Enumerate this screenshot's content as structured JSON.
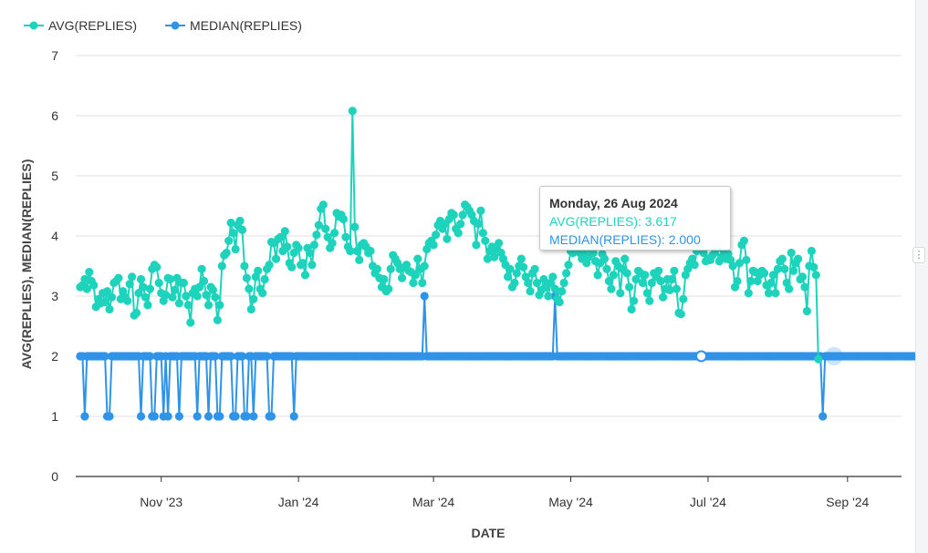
{
  "colors": {
    "avg": "#1ed3bb",
    "median": "#2f93e8",
    "grid": "#e6e6e6",
    "axis": "#333333",
    "text": "#333333"
  },
  "chart_data": {
    "type": "line",
    "title": "",
    "xlabel": "DATE",
    "ylabel": "AVG(REPLIES), MEDIAN(REPLIES)",
    "x_range": [
      "2023-09-24",
      "2024-09-25"
    ],
    "ylim": [
      0,
      7
    ],
    "y_ticks": [
      "0",
      "1",
      "2",
      "3",
      "4",
      "5",
      "6",
      "7"
    ],
    "x_ticks": [
      {
        "label": "Nov '23",
        "date": "2023-11-01"
      },
      {
        "label": "Jan '24",
        "date": "2024-01-01"
      },
      {
        "label": "Mar '24",
        "date": "2024-03-01"
      },
      {
        "label": "May '24",
        "date": "2024-05-01"
      },
      {
        "label": "Jul '24",
        "date": "2024-07-01"
      },
      {
        "label": "Sep '24",
        "date": "2024-09-01"
      }
    ],
    "grid": true,
    "legend_position": "top-left",
    "x_start_date": "2023-09-26",
    "series": [
      {
        "name": "AVG(REPLIES)",
        "values": [
          3.15,
          3.18,
          3.28,
          3.12,
          3.4,
          3.25,
          3.18,
          2.82,
          2.95,
          2.88,
          3.05,
          2.9,
          3.08,
          2.78,
          2.98,
          3.22,
          3.25,
          3.3,
          2.95,
          3.08,
          2.98,
          2.92,
          3.2,
          3.32,
          2.68,
          2.72,
          3.05,
          3.28,
          3.15,
          2.98,
          2.85,
          3.12,
          3.45,
          3.52,
          3.48,
          3.22,
          3.05,
          2.92,
          3.02,
          3.3,
          3.28,
          2.98,
          3.1,
          3.3,
          2.88,
          3.22,
          3.22,
          3.0,
          2.85,
          2.56,
          3.05,
          3.12,
          3.0,
          3.15,
          3.45,
          3.25,
          3.02,
          2.85,
          3.15,
          3.1,
          2.98,
          2.6,
          2.85,
          3.5,
          3.68,
          3.72,
          3.92,
          4.22,
          4.05,
          3.78,
          4.18,
          4.25,
          4.1,
          3.5,
          3.3,
          3.12,
          2.78,
          2.95,
          3.32,
          3.42,
          3.12,
          3.05,
          3.28,
          3.45,
          3.52,
          3.9,
          3.88,
          3.62,
          3.95,
          3.98,
          3.75,
          4.08,
          3.82,
          3.55,
          3.48,
          3.72,
          3.85,
          3.8,
          3.52,
          3.55,
          3.35,
          3.8,
          3.72,
          3.52,
          3.85,
          4.02,
          4.18,
          4.45,
          4.52,
          4.12,
          3.98,
          3.8,
          3.88,
          4.05,
          4.38,
          4.32,
          4.35,
          4.28,
          3.98,
          3.82,
          3.75,
          6.08,
          4.15,
          3.75,
          3.6,
          3.85,
          3.88,
          3.82,
          3.72,
          3.75,
          3.5,
          3.38,
          3.45,
          3.3,
          3.15,
          3.28,
          3.08,
          3.12,
          3.45,
          3.68,
          3.62,
          3.55,
          3.45,
          3.3,
          3.48,
          3.52,
          3.42,
          3.4,
          3.22,
          3.35,
          3.62,
          3.45,
          3.22,
          3.5,
          3.78,
          3.88,
          3.92,
          3.85,
          4.02,
          4.18,
          4.25,
          4.12,
          4.2,
          3.95,
          4.28,
          4.38,
          4.35,
          4.12,
          4.05,
          4.2,
          4.35,
          4.52,
          4.48,
          4.42,
          4.35,
          4.25,
          3.85,
          4.2,
          4.42,
          4.05,
          3.92,
          3.62,
          3.75,
          3.82,
          3.65,
          3.78,
          3.88,
          3.72,
          3.62,
          3.52,
          3.32,
          3.45,
          3.15,
          3.22,
          3.38,
          3.5,
          3.62,
          3.48,
          3.32,
          3.22,
          3.08,
          3.38,
          3.45,
          3.22,
          3.02,
          3.1,
          3.28,
          3.15,
          3.0,
          3.22,
          3.32,
          3.12,
          2.95,
          2.9,
          3.08,
          3.22,
          3.38,
          3.52,
          3.75,
          3.72,
          3.85,
          3.95,
          3.72,
          3.62,
          3.7,
          3.55,
          3.65,
          3.78,
          3.72,
          3.58,
          3.35,
          3.55,
          3.7,
          3.62,
          3.45,
          3.25,
          3.12,
          3.35,
          3.58,
          3.5,
          3.05,
          3.45,
          3.62,
          3.38,
          3.15,
          2.78,
          2.92,
          3.28,
          3.42,
          3.38,
          3.22,
          3.35,
          3.05,
          2.92,
          3.22,
          3.38,
          3.32,
          3.42,
          3.25,
          2.98,
          3.12,
          3.28,
          3.1,
          3.28,
          3.42,
          3.12,
          2.72,
          2.7,
          2.95,
          3.35,
          3.45,
          3.55,
          3.62,
          3.52,
          3.75,
          3.88,
          3.92,
          3.72,
          3.58,
          3.62,
          3.6,
          3.68,
          3.72,
          3.8,
          3.58,
          3.65,
          3.75,
          3.62,
          3.7,
          3.6,
          3.5,
          3.15,
          3.25,
          3.55,
          3.85,
          3.92,
          3.6,
          3.05,
          3.25,
          3.42,
          3.4,
          3.25,
          3.35,
          3.42,
          3.38,
          3.18,
          3.05,
          3.22,
          3.35,
          3.05,
          3.45,
          3.58,
          3.62,
          3.45,
          3.22,
          3.12,
          3.72,
          3.42,
          3.55,
          3.62,
          3.28,
          3.32,
          3.15,
          2.75,
          3.5,
          3.75,
          3.48,
          3.35,
          1.95
        ]
      },
      {
        "name": "MEDIAN(REPLIES)",
        "values": [
          2,
          2,
          1,
          2,
          2,
          2,
          2,
          2,
          2,
          2,
          2,
          2,
          1,
          1,
          2,
          2,
          2,
          2,
          2,
          2,
          2,
          2,
          2,
          2,
          2,
          2,
          2,
          1,
          2,
          2,
          2,
          2,
          1,
          1,
          2,
          2,
          2,
          1,
          2,
          1,
          2,
          2,
          2,
          2,
          1,
          2,
          2,
          2,
          2,
          2,
          2,
          2,
          1,
          2,
          2,
          2,
          2,
          1,
          2,
          2,
          2,
          1,
          1,
          2,
          2,
          2,
          2,
          2,
          1,
          1,
          2,
          2,
          2,
          1,
          1,
          2,
          2,
          1,
          2,
          2,
          2,
          2,
          2,
          2,
          1,
          1,
          2,
          2,
          2,
          2,
          2,
          2,
          2,
          2,
          2,
          1,
          2,
          2,
          2,
          2,
          2,
          2,
          2,
          2,
          2,
          2,
          2,
          2,
          2,
          2,
          2,
          2,
          2,
          2,
          2,
          2,
          2,
          2,
          2,
          2,
          2,
          2,
          2,
          2,
          2,
          2,
          2,
          2,
          2,
          2,
          2,
          2,
          2,
          2,
          2,
          2,
          2,
          2,
          2,
          2,
          2,
          2,
          2,
          2,
          2,
          2,
          2,
          2,
          2,
          2,
          2,
          2,
          2,
          3,
          2,
          2,
          2,
          2,
          2,
          2,
          2,
          2,
          2,
          2,
          2,
          2,
          2,
          2,
          2,
          2,
          2,
          2,
          2,
          2,
          2,
          2,
          2,
          2,
          2,
          2,
          2,
          2,
          2,
          2,
          2,
          2,
          2,
          2,
          2,
          2,
          2,
          2,
          2,
          2,
          2,
          2,
          2,
          2,
          2,
          2,
          2,
          2,
          2,
          2,
          2,
          2,
          2,
          2,
          2,
          2,
          2,
          3,
          2,
          2,
          2,
          2,
          2,
          2,
          2,
          2,
          2,
          2,
          2,
          2,
          2,
          2,
          2,
          2,
          2,
          2,
          2,
          2,
          2,
          2,
          2,
          2,
          2,
          2,
          2,
          2,
          2,
          2,
          2,
          2,
          2,
          2,
          2,
          2,
          2,
          2,
          2,
          2,
          2,
          2,
          2,
          2,
          2,
          2,
          2,
          2,
          2,
          2,
          2,
          2,
          2,
          2,
          2,
          2,
          2,
          2,
          2,
          2,
          2,
          2,
          2,
          2,
          2,
          2,
          2,
          2,
          2,
          2,
          2,
          2,
          2,
          2,
          2,
          2,
          2,
          2,
          2,
          2,
          2,
          2,
          2,
          2,
          2,
          2,
          2,
          2,
          2,
          2,
          2,
          2,
          2,
          2,
          2,
          2,
          2,
          2,
          2,
          2,
          2,
          2,
          2,
          2,
          2,
          2,
          2,
          2,
          2,
          2,
          2,
          2,
          2,
          2,
          2,
          2,
          2,
          2,
          1,
          2,
          2,
          2,
          2,
          2,
          2,
          2,
          2,
          2,
          2,
          2,
          2,
          2,
          2,
          2,
          2,
          2,
          2,
          2,
          2,
          2,
          2,
          2,
          2,
          2,
          2,
          2,
          2,
          2,
          2,
          2,
          2,
          2,
          2,
          2,
          2,
          2,
          2,
          2,
          2,
          2,
          2,
          2,
          2,
          2,
          2,
          2,
          2,
          2,
          1
        ]
      }
    ]
  },
  "tooltip": {
    "title": "Monday, 26 Aug 2024",
    "avg_line": "AVG(REPLIES): 3.617",
    "median_line": "MEDIAN(REPLIES): 2.000"
  }
}
